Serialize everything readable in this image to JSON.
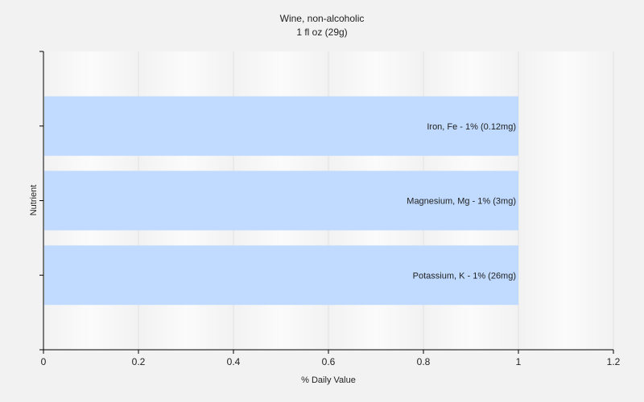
{
  "chart_data": {
    "type": "bar",
    "orientation": "horizontal",
    "title": "Wine, non-alcoholic",
    "subtitle": "1 fl oz (29g)",
    "xlabel": "% Daily Value",
    "ylabel": "Nutrient",
    "xlim": [
      0,
      1.2
    ],
    "xticks": [
      0,
      0.2,
      0.4,
      0.6,
      0.8,
      1,
      1.2
    ],
    "grid": true,
    "legend": "none",
    "bar_color": "#c0dbff",
    "categories": [
      "Iron, Fe",
      "Magnesium, Mg",
      "Potassium, K"
    ],
    "values": [
      1,
      1,
      1
    ],
    "labels": [
      "Iron, Fe - 1% (0.12mg)",
      "Magnesium, Mg - 1% (3mg)",
      "Potassium, K - 1% (26mg)"
    ]
  }
}
